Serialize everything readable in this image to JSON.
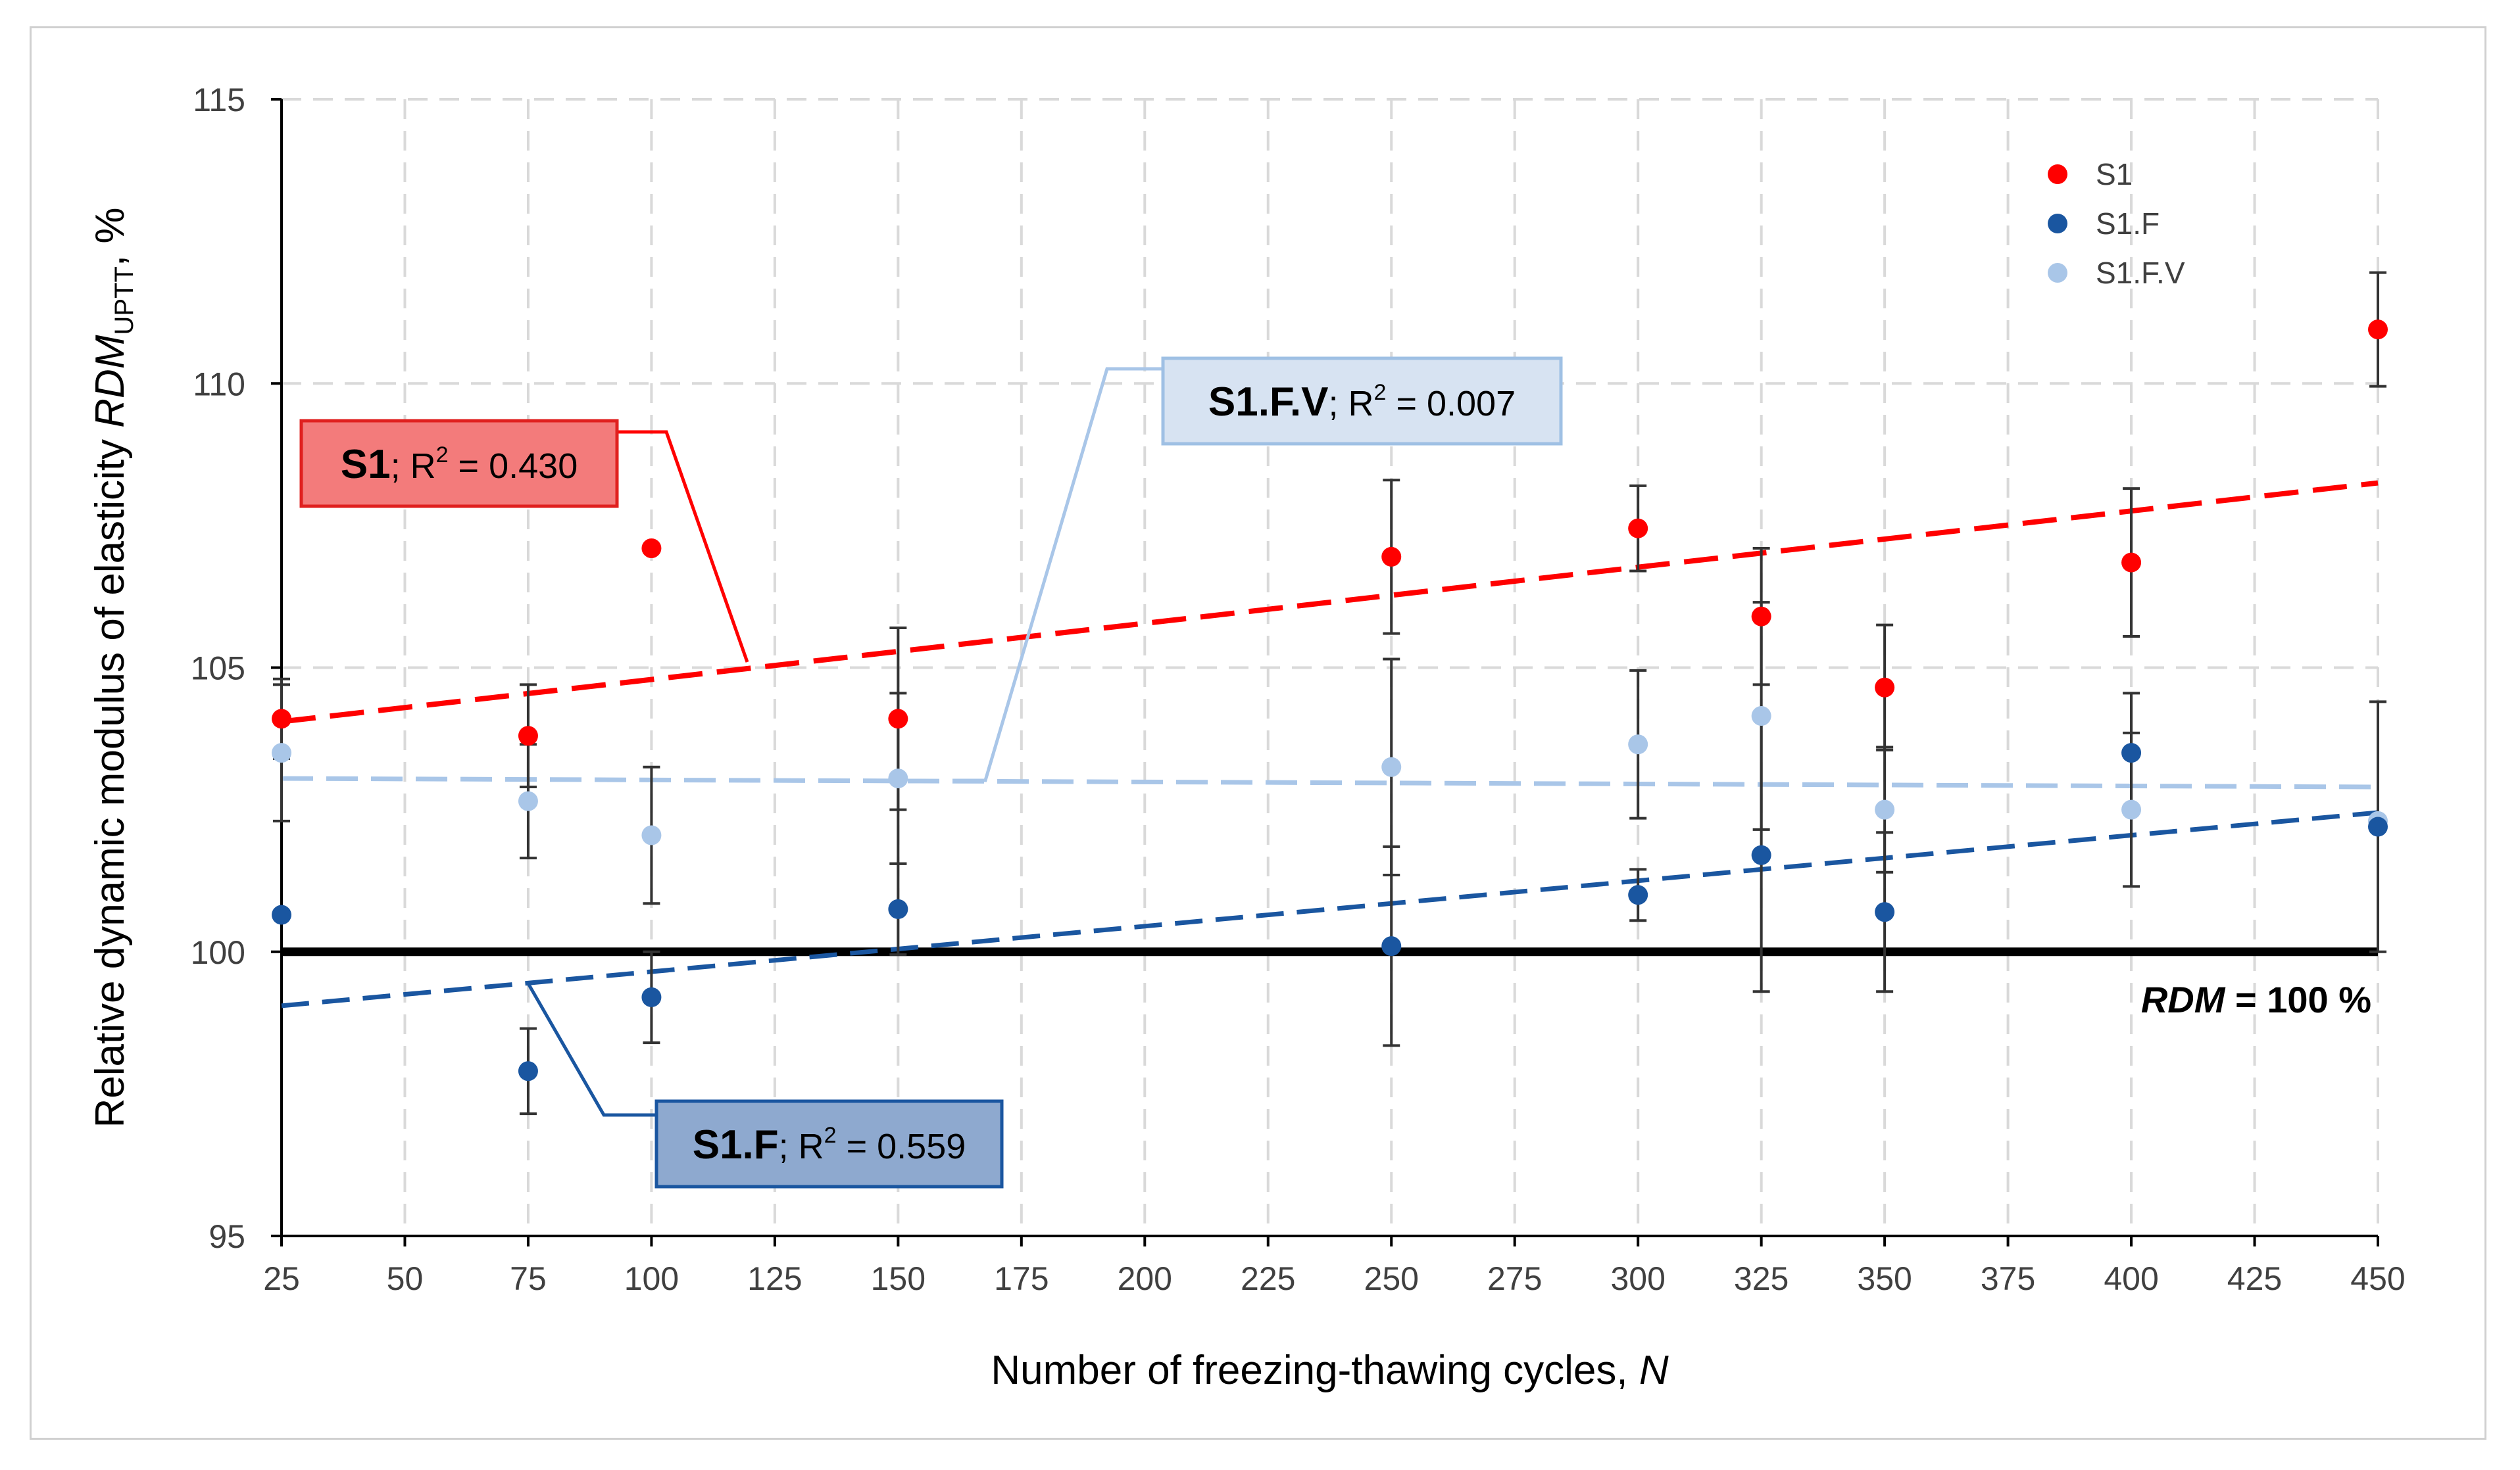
{
  "chart_data": {
    "type": "scatter",
    "xlabel": "Number of freezing-thawing cycles, ",
    "xlabel_italic": "N",
    "ylabel_prefix": "Relative dynamic modulus of elasticity ",
    "ylabel_italic": "RDM",
    "ylabel_subscript": "UPTT",
    "ylabel_suffix": ", %",
    "xlim": [
      25,
      450
    ],
    "ylim": [
      95,
      115
    ],
    "x_ticks": [
      25,
      50,
      75,
      100,
      125,
      150,
      175,
      200,
      225,
      250,
      275,
      300,
      325,
      350,
      375,
      400,
      425,
      450
    ],
    "y_ticks": [
      95,
      100,
      105,
      110,
      115
    ],
    "grid": true,
    "legend_position": "top-right",
    "series": [
      {
        "name": "S1",
        "color": "#ff0000",
        "x": [
          25,
          75,
          100,
          150,
          250,
          300,
          325,
          350,
          400,
          450
        ],
        "y": [
          104.1,
          103.8,
          107.1,
          104.1,
          106.95,
          107.45,
          105.9,
          104.65,
          106.85,
          110.95
        ],
        "err": [
          0.7,
          0.9,
          0,
          1.6,
          1.35,
          0.75,
          1.2,
          1.1,
          1.3,
          1.0
        ],
        "trend": {
          "x": [
            25,
            450
          ],
          "y": [
            104.05,
            108.25
          ],
          "r2_label": "S1",
          "r2_text": "; R",
          "r2_sup": "2",
          "r2_value": " = 0.430"
        }
      },
      {
        "name": "S1.F",
        "color": "#1a56a0",
        "x": [
          25,
          75,
          100,
          150,
          250,
          300,
          325,
          350,
          400,
          450
        ],
        "y": [
          100.65,
          97.9,
          99.2,
          100.75,
          100.1,
          101.0,
          101.7,
          100.7,
          103.5,
          102.2
        ],
        "err": [
          0,
          0.75,
          0.8,
          0.8,
          1.75,
          0.45,
          2.4,
          1.4,
          1.05,
          2.2
        ],
        "trend": {
          "x": [
            25,
            450
          ],
          "y": [
            99.05,
            102.45
          ],
          "r2_label": "S1.F",
          "r2_text": "; R",
          "r2_sup": "2",
          "r2_value": " = 0.559"
        }
      },
      {
        "name": "S1.F.V",
        "color": "#a9c6e8",
        "x": [
          25,
          75,
          100,
          150,
          250,
          300,
          325,
          350,
          400,
          450
        ],
        "y": [
          103.5,
          102.65,
          102.05,
          103.05,
          103.25,
          103.65,
          104.15,
          102.5,
          102.5,
          102.3
        ],
        "err": [
          1.2,
          1.0,
          1.2,
          1.5,
          1.9,
          1.3,
          2.0,
          1.1,
          1.35,
          0
        ],
        "trend": {
          "x": [
            25,
            450
          ],
          "y": [
            103.05,
            102.9
          ],
          "r2_label": "S1.F.V",
          "r2_text": "; R",
          "r2_sup": "2",
          "r2_value": " = 0.007"
        }
      }
    ],
    "reference_line": {
      "y": 100,
      "label_italic": "RDM",
      "label_rest": " = 100 %"
    }
  }
}
